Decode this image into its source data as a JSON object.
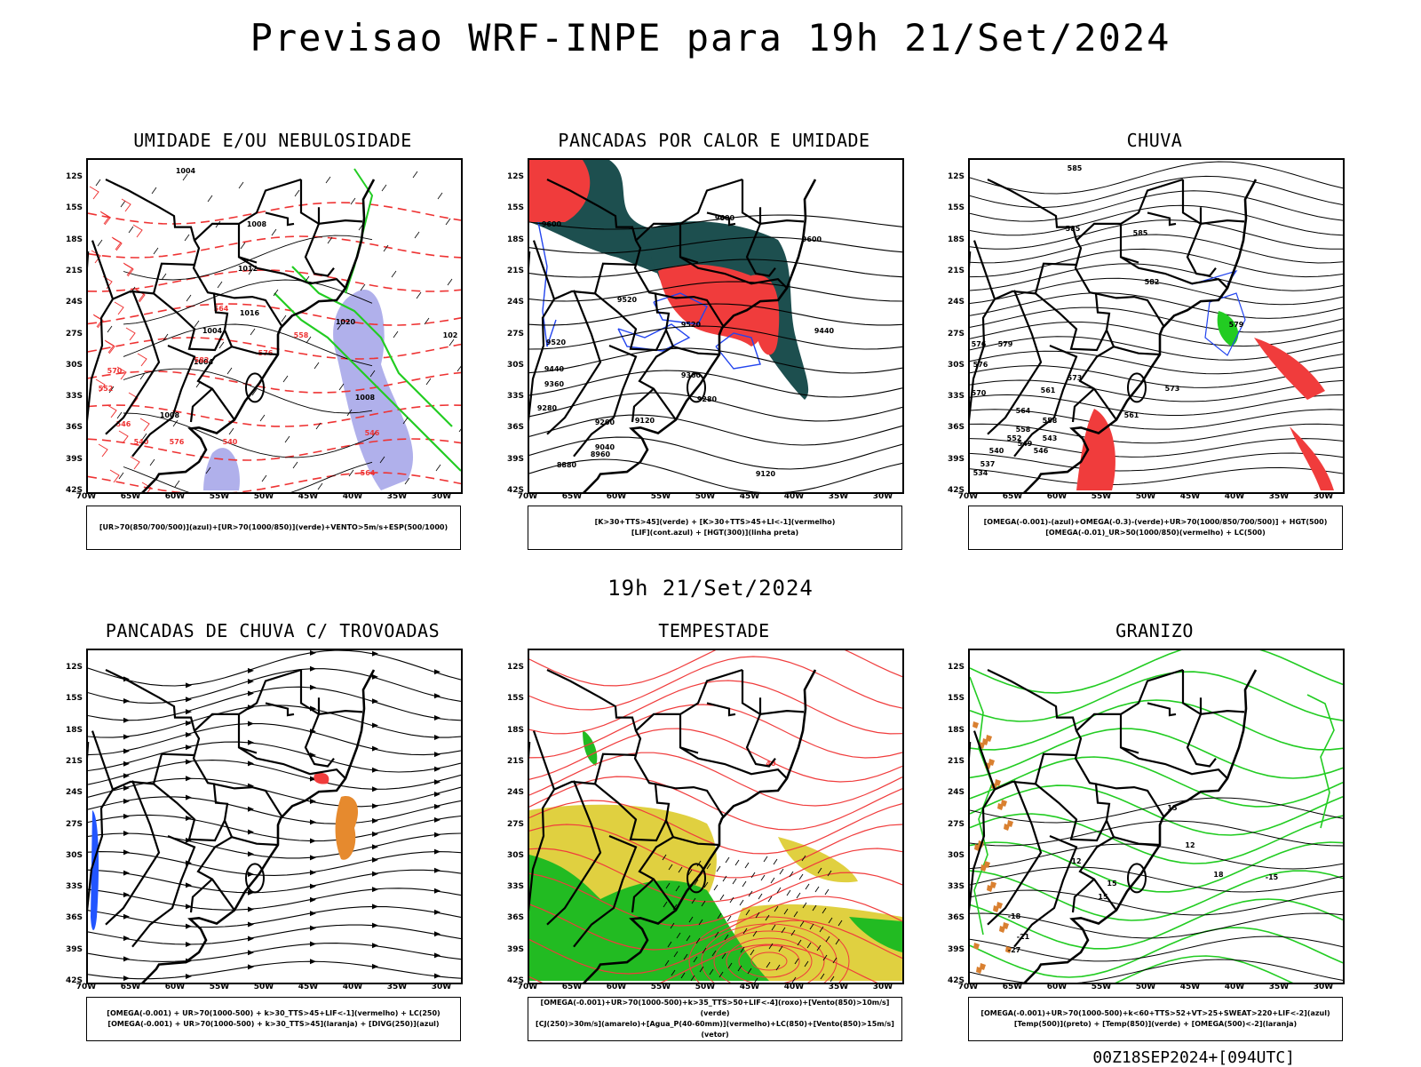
{
  "title": "Previsao WRF-INPE  para 19h 21/Set/2024",
  "subtitle": "19h 21/Set/2024",
  "footer": "00Z18SEP2024+[094UTC]",
  "axes": {
    "lat_labels": [
      "12S",
      "15S",
      "18S",
      "21S",
      "24S",
      "27S",
      "30S",
      "33S",
      "36S",
      "39S",
      "42S"
    ],
    "lon_labels": [
      "70W",
      "65W",
      "60W",
      "55W",
      "50W",
      "45W",
      "40W",
      "35W",
      "30W"
    ]
  },
  "colors": {
    "umidade_azul": "#9c9ce6",
    "umidade_verde": "#22cc22",
    "esp_vermelho": "#ee3333",
    "pancadas_verde_escuro": "#1d4f4f",
    "pancadas_vermelho": "#f03c3c",
    "lif_azul": "#2244ee",
    "chuva_vermelho": "#f03c3c",
    "chuva_verde": "#22cc22",
    "trovoada_laranja": "#e68a2e",
    "trovoada_azul": "#2255ff",
    "tempestade_amarelo": "#e0d040",
    "tempestade_verde": "#22bb22",
    "granizo_verde": "#22cc22",
    "granizo_laranja": "#d98030"
  },
  "panels": [
    {
      "title": "UMIDADE E/OU NEBULOSIDADE",
      "legend": [
        "[UR>70(850/700/500)](azul)+[UR>70(1000/850)](verde)+VENTO>5m/s+ESP(500/1000)"
      ],
      "labels": [
        "1004",
        "1008",
        "1012",
        "1016",
        "1020",
        "1008",
        "1004",
        "1004",
        "1008",
        "576",
        "582",
        "570",
        "564",
        "558",
        "552",
        "546",
        "540",
        "546",
        "540",
        "564",
        "576",
        "102"
      ]
    },
    {
      "title": "PANCADAS POR CALOR E UMIDADE",
      "legend": [
        "[K>30+TTS>45](verde) + [K>30+TTS>45+LI<-1](vermelho)",
        "[LIF](cont.azul) + [HGT(300)](linha preta)"
      ],
      "labels": [
        "9600",
        "9600",
        "9600",
        "9520",
        "9520",
        "9520",
        "9440",
        "9440",
        "9360",
        "9360",
        "9280",
        "9280",
        "9200",
        "9120",
        "9040",
        "8960",
        "8880",
        "9120"
      ]
    },
    {
      "title": "CHUVA",
      "legend": [
        "[OMEGA(-0.001)-(azul)+OMEGA(-0.3)-(verde)+UR>70(1000/850/700/500)] + HGT(500)",
        "[OMEGA(-0.01)_UR>50(1000/850)(vermelho) + LC(500)"
      ],
      "labels": [
        "585",
        "585",
        "585",
        "582",
        "579",
        "576",
        "579",
        "573",
        "573",
        "576",
        "570",
        "564",
        "561",
        "558",
        "552",
        "549",
        "546",
        "543",
        "540",
        "537",
        "534",
        "561",
        "558"
      ]
    },
    {
      "title": "PANCADAS DE CHUVA C/ TROVOADAS",
      "legend": [
        "[OMEGA(-0.001) + UR>70(1000-500) + k>30_TTS>45+LIF<-1](vermelho) + LC(250)",
        "[OMEGA(-0.001) + UR>70(1000-500) + k>30_TTS>45](laranja) + [DIVG(250)](azul)"
      ],
      "labels": []
    },
    {
      "title": "TEMPESTADE",
      "legend": [
        "[OMEGA(-0.001)+UR>70(1000-500)+k>35_TTS>50+LIF<-4](roxo)+[Vento(850)>10m/s](verde)",
        "[CJ(250)>30m/s](amarelo)+[Agua_P(40-60mm)](vermelho)+LC(850)+[Vento(850)>15m/s](vetor)"
      ],
      "labels": [
        "40"
      ]
    },
    {
      "title": "GRANIZO",
      "legend": [
        "[OMEGA(-0.001)+UR>70(1000-500)+k<60+TTS>52+VT>25+SWEAT>220+LIF<-2](azul)",
        "[Temp(500)](preto) + [Temp(850)](verde) + [OMEGA(500)<-2](laranja)"
      ],
      "labels": [
        "12",
        "12",
        "15",
        "15",
        "-15",
        "-18",
        "-21",
        "-27",
        "15",
        "18"
      ]
    }
  ]
}
